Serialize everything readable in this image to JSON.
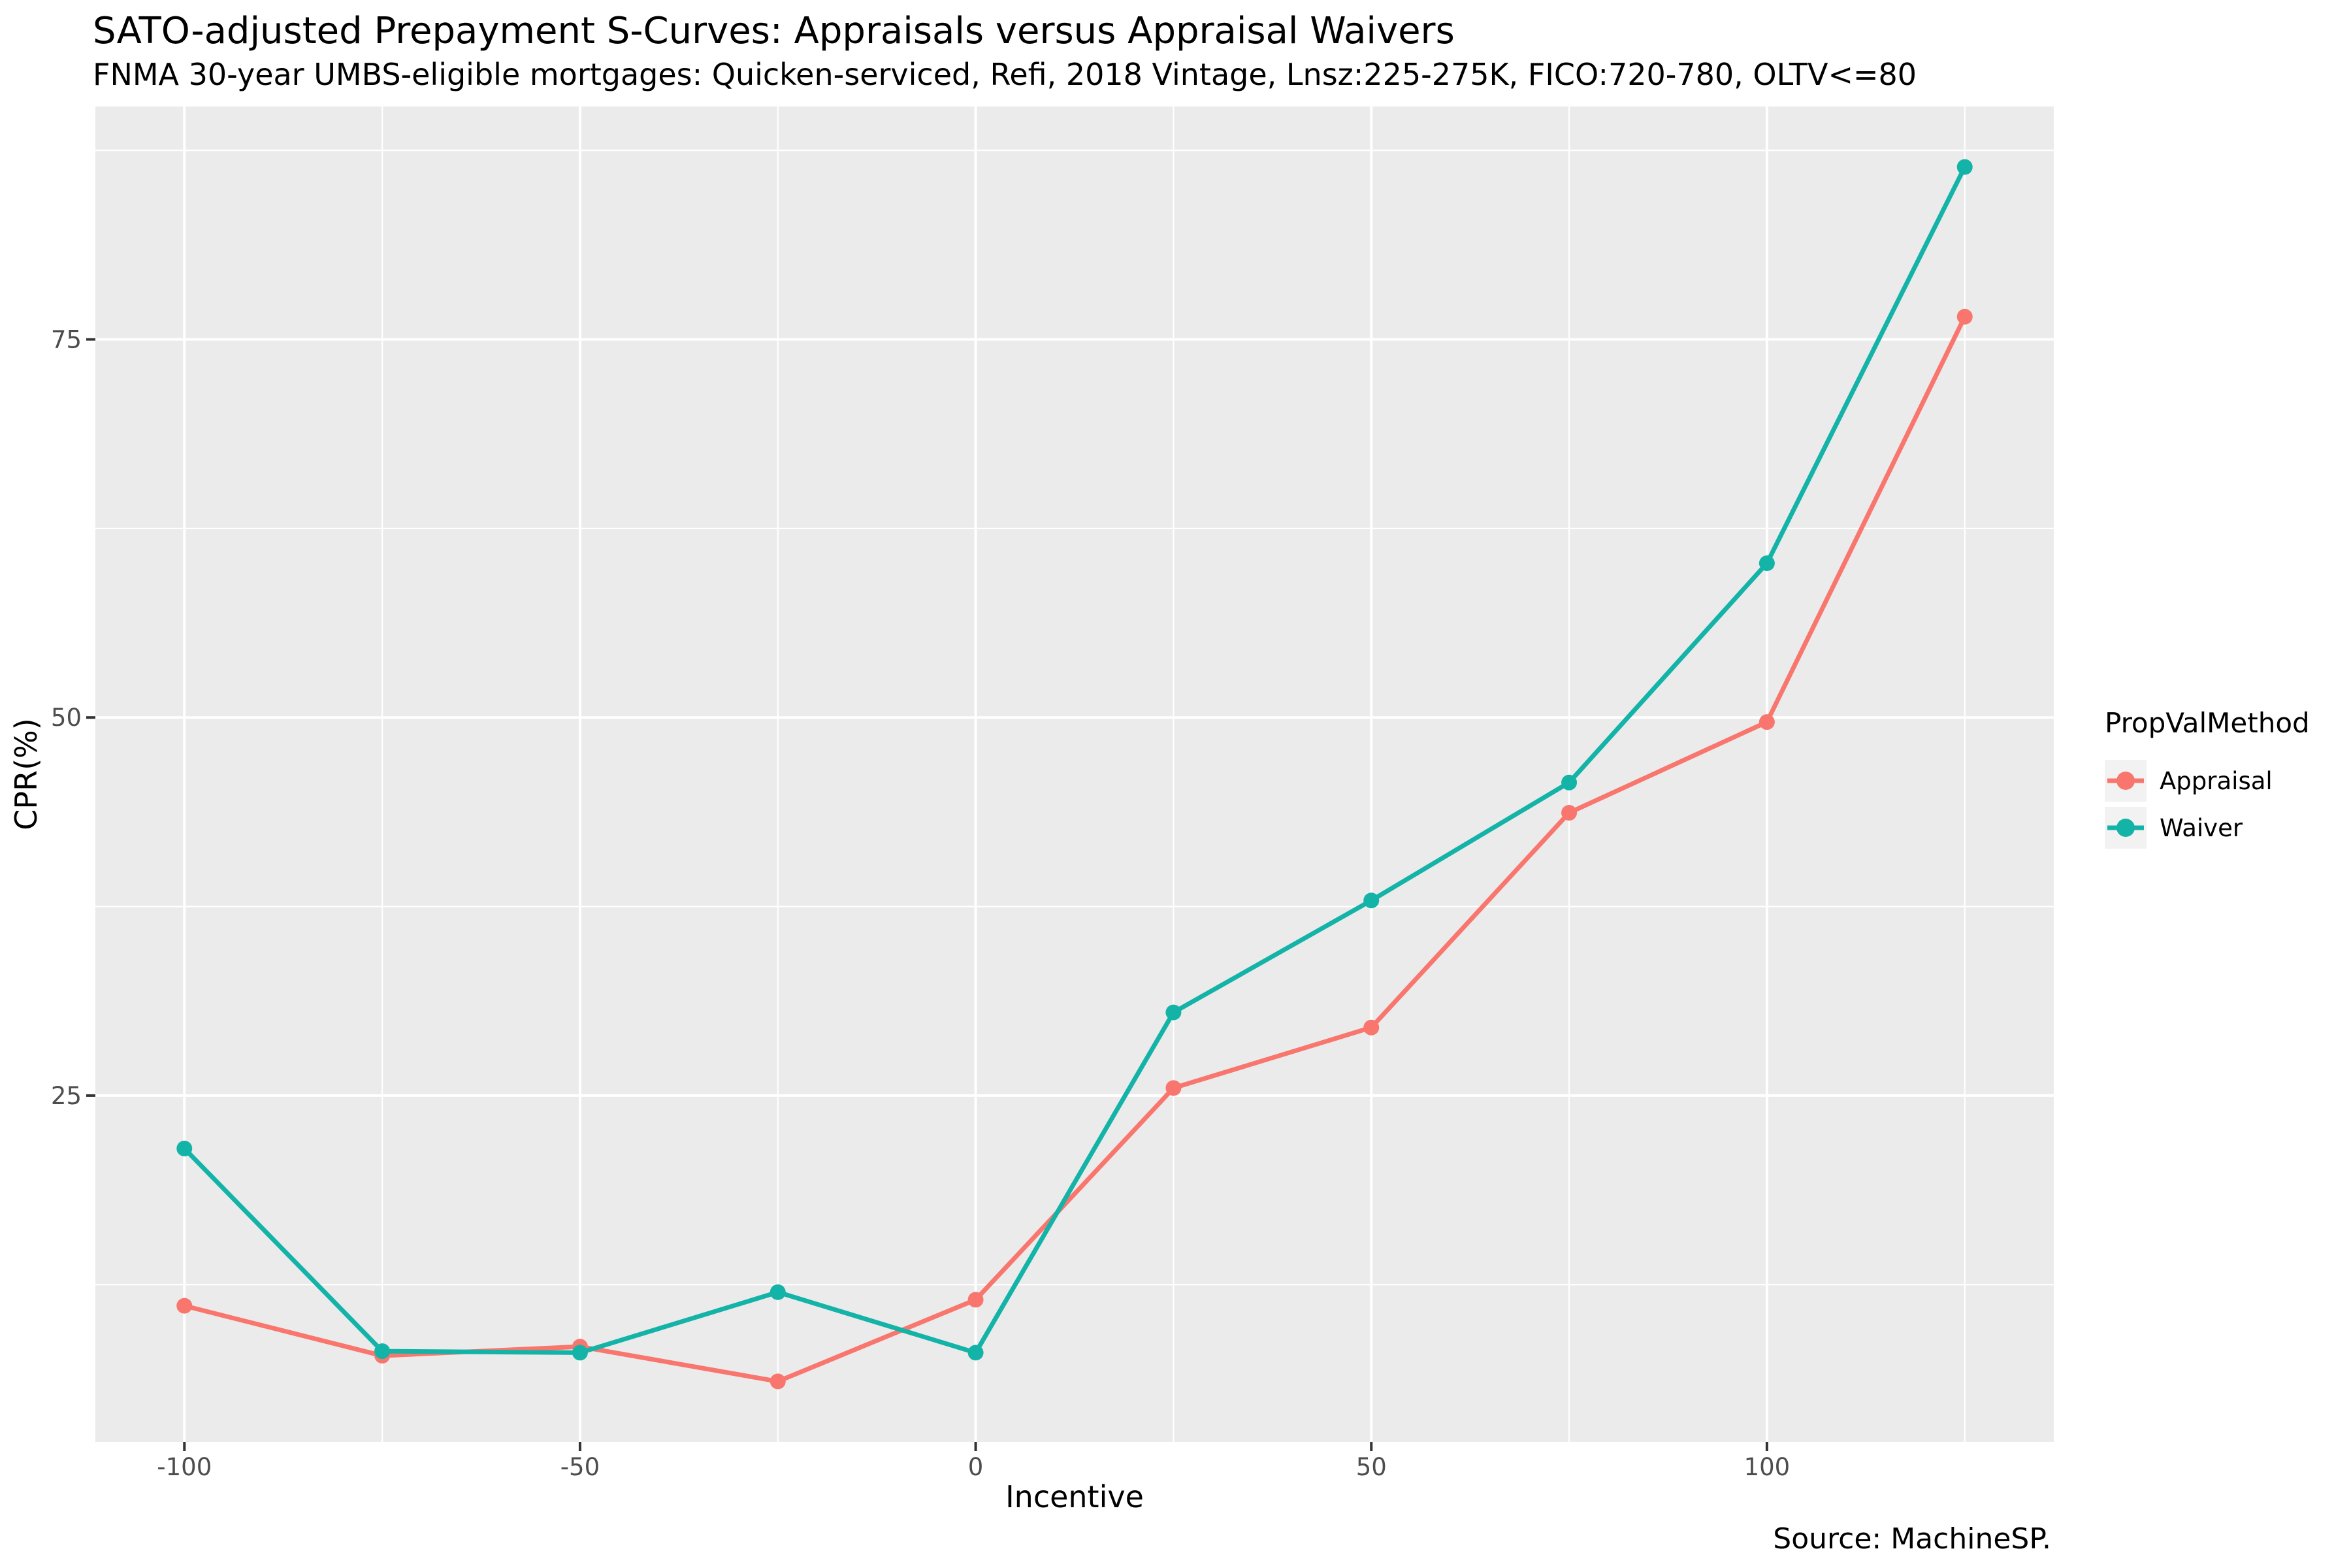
{
  "header": {
    "title": "SATO-adjusted Prepayment S-Curves: Appraisals versus Appraisal Waivers",
    "subtitle": "FNMA 30-year UMBS-eligible mortgages: Quicken-serviced, Refi, 2018 Vintage, Lnsz:225-275K, FICO:720-780, OLTV<=80"
  },
  "caption": "Source: MachineSP.",
  "chart_data": {
    "type": "line",
    "title": "SATO-adjusted Prepayment S-Curves: Appraisals versus Appraisal Waivers",
    "subtitle": "FNMA 30-year UMBS-eligible mortgages: Quicken-serviced, Refi, 2018 Vintage, Lnsz:225-275K, FICO:720-780, OLTV<=80",
    "xlabel": "Incentive",
    "ylabel": "CPR(%)",
    "caption": "Source: MachineSP.",
    "x": [
      -100,
      -75,
      -50,
      -25,
      0,
      25,
      50,
      75,
      100,
      125
    ],
    "series": [
      {
        "name": "Appraisal",
        "color": "#F8766D",
        "values": [
          11.1,
          7.8,
          8.4,
          6.1,
          11.5,
          25.5,
          29.5,
          43.7,
          49.7,
          76.5
        ]
      },
      {
        "name": "Waiver",
        "color": "#14B3A8",
        "values": [
          21.5,
          8.1,
          8.0,
          12.0,
          8.0,
          30.5,
          37.9,
          45.7,
          60.2,
          86.4
        ]
      }
    ],
    "xlim": [
      -111.25,
      136.25
    ],
    "ylim": [
      2.1,
      90.4
    ],
    "x_major_ticks": [
      -100,
      -50,
      0,
      50,
      100
    ],
    "x_minor_ticks": [
      -75,
      -25,
      25,
      75,
      125
    ],
    "y_major_ticks": [
      25,
      50,
      75
    ],
    "y_minor_ticks": [
      12.5,
      37.5,
      62.5,
      87.5
    ],
    "grid": true,
    "legend": {
      "title": "PropValMethod",
      "position": "right"
    },
    "colors": {
      "panel_bg": "#EBEBEB",
      "grid": "#FFFFFF",
      "tick_mark": "#333333",
      "tick_label": "#4D4D4D",
      "legend_key_bg": "#F2F2F2"
    }
  }
}
